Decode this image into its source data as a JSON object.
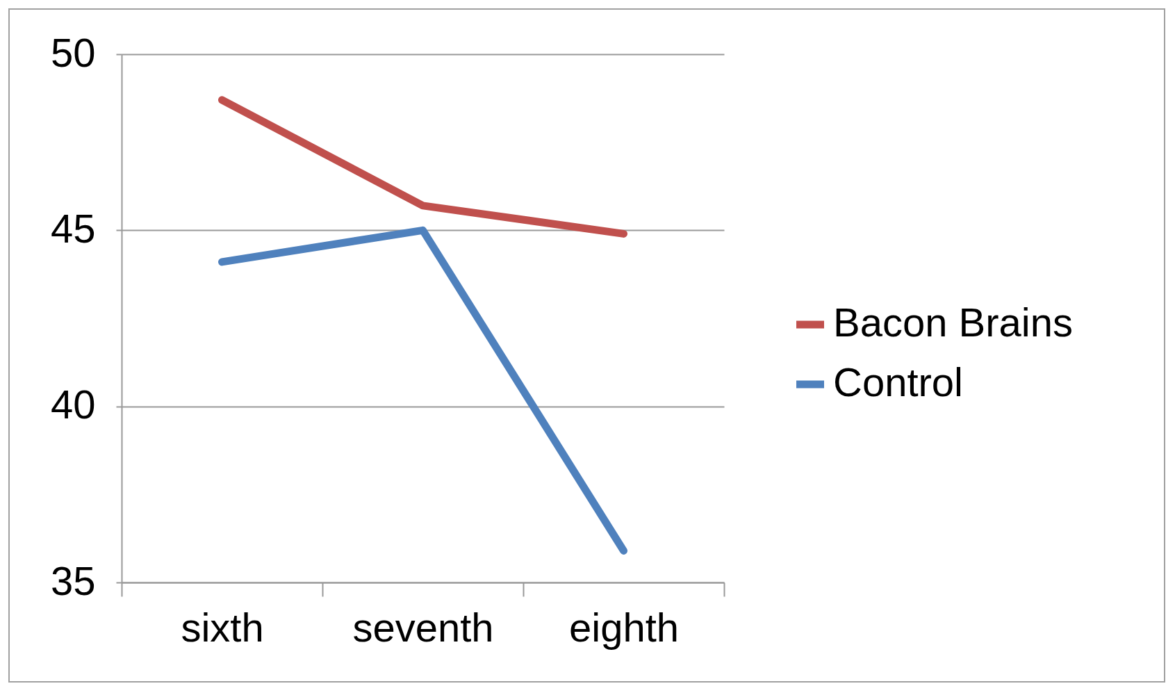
{
  "chart_data": {
    "type": "line",
    "categories": [
      "sixth",
      "seventh",
      "eighth"
    ],
    "series": [
      {
        "name": "Bacon Brains",
        "color": "#c0504d",
        "values": [
          48.7,
          45.7,
          44.9
        ]
      },
      {
        "name": "Control",
        "color": "#4f81bd",
        "values": [
          44.1,
          45.0,
          35.9
        ]
      }
    ],
    "ylim": [
      35,
      50
    ],
    "yticks": [
      35,
      40,
      45,
      50
    ],
    "grid": "y",
    "legend": "right",
    "marker": "none",
    "line_style": "solid"
  }
}
